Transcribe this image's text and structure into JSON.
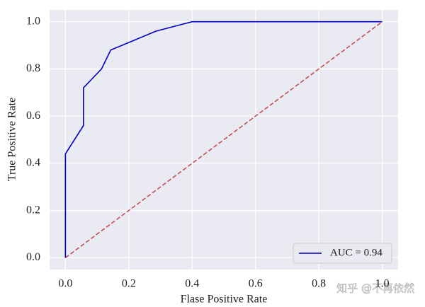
{
  "chart_data": {
    "type": "line",
    "xlabel": "Flase Positive Rate",
    "ylabel": "True Positive Rate",
    "series": [
      {
        "name": "AUC = 0.94",
        "color": "#0000c8",
        "x": [
          0,
          0,
          0.057,
          0.057,
          0.114,
          0.143,
          0.286,
          0.4,
          1.0
        ],
        "values": [
          0,
          0.44,
          0.56,
          0.72,
          0.8,
          0.88,
          0.96,
          1.0,
          1.0
        ]
      }
    ],
    "reference_line": {
      "x": [
        0,
        1
      ],
      "values": [
        0,
        1
      ],
      "color": "#c44e52",
      "dashed": true
    },
    "xlim": [
      -0.05,
      1.05
    ],
    "ylim": [
      -0.05,
      1.05
    ],
    "xticks": [
      {
        "value": 0,
        "label": "0.0"
      },
      0.2,
      0.4,
      0.6,
      0.8,
      {
        "value": 1,
        "label": "1.0"
      }
    ],
    "yticks": [
      {
        "value": 0,
        "label": "0.0"
      },
      0.2,
      0.4,
      0.6,
      0.8,
      {
        "value": 1,
        "label": "1.0"
      }
    ],
    "grid": true,
    "legend": "lower right",
    "watermark": "知乎 @不再依然"
  }
}
